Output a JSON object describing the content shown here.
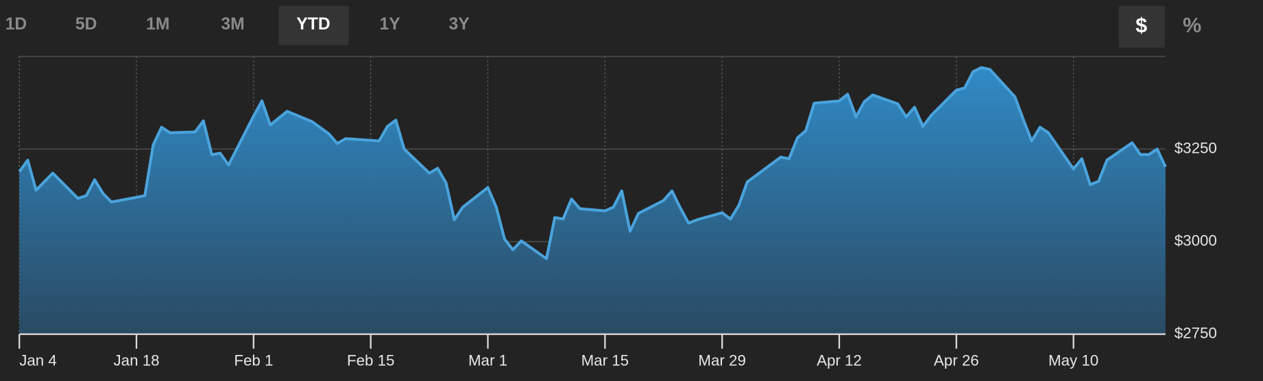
{
  "range_buttons": [
    "1D",
    "5D",
    "1M",
    "3M",
    "YTD",
    "1Y",
    "3Y"
  ],
  "selected_range": "YTD",
  "unit_buttons": [
    "$",
    "%"
  ],
  "selected_unit": "$",
  "chart_data": {
    "type": "area",
    "x": [
      "Jan 4",
      "Jan 5",
      "Jan 6",
      "Jan 8",
      "Jan 11",
      "Jan 12",
      "Jan 13",
      "Jan 14",
      "Jan 15",
      "Jan 19",
      "Jan 20",
      "Jan 21",
      "Jan 22",
      "Jan 25",
      "Jan 26",
      "Jan 27",
      "Jan 28",
      "Jan 29",
      "Feb 1",
      "Feb 2",
      "Feb 3",
      "Feb 5",
      "Feb 8",
      "Feb 10",
      "Feb 11",
      "Feb 12",
      "Feb 16",
      "Feb 17",
      "Feb 18",
      "Feb 19",
      "Feb 22",
      "Feb 23",
      "Feb 24",
      "Feb 25",
      "Feb 26",
      "Mar 1",
      "Mar 2",
      "Mar 3",
      "Mar 4",
      "Mar 5",
      "Mar 8",
      "Mar 9",
      "Mar 10",
      "Mar 11",
      "Mar 12",
      "Mar 15",
      "Mar 16",
      "Mar 17",
      "Mar 18",
      "Mar 19",
      "Mar 22",
      "Mar 23",
      "Mar 24",
      "Mar 25",
      "Mar 26",
      "Mar 29",
      "Mar 30",
      "Mar 31",
      "Apr 1",
      "Apr 5",
      "Apr 6",
      "Apr 7",
      "Apr 8",
      "Apr 9",
      "Apr 12",
      "Apr 13",
      "Apr 14",
      "Apr 15",
      "Apr 16",
      "Apr 19",
      "Apr 20",
      "Apr 21",
      "Apr 22",
      "Apr 23",
      "Apr 26",
      "Apr 27",
      "Apr 28",
      "Apr 29",
      "Apr 30",
      "May 3",
      "May 4",
      "May 5",
      "May 6",
      "May 7",
      "May 10",
      "May 11",
      "May 12",
      "May 13",
      "May 14",
      "May 17",
      "May 18",
      "May 19",
      "May 20",
      "May 21"
    ],
    "values": [
      3189,
      3220,
      3139,
      3185,
      3117,
      3124,
      3167,
      3130,
      3107,
      3124,
      3261,
      3309,
      3294,
      3296,
      3326,
      3235,
      3239,
      3207,
      3339,
      3380,
      3315,
      3352,
      3324,
      3291,
      3265,
      3278,
      3272,
      3311,
      3328,
      3250,
      3185,
      3198,
      3159,
      3059,
      3093,
      3146,
      3093,
      3007,
      2978,
      3002,
      2954,
      3065,
      3061,
      3115,
      3089,
      3083,
      3093,
      3137,
      3028,
      3076,
      3111,
      3137,
      3091,
      3050,
      3059,
      3078,
      3061,
      3098,
      3161,
      3228,
      3224,
      3280,
      3300,
      3374,
      3380,
      3398,
      3337,
      3378,
      3396,
      3372,
      3337,
      3363,
      3311,
      3341,
      3409,
      3415,
      3459,
      3470,
      3465,
      3391,
      3330,
      3272,
      3309,
      3294,
      3196,
      3224,
      3154,
      3163,
      3220,
      3267,
      3235,
      3235,
      3250,
      3202
    ],
    "color": "#4aa3dc",
    "xlim": [
      "Jan 4",
      "May 21"
    ],
    "xticks": [
      "Jan 4",
      "Jan 18",
      "Feb 1",
      "Feb 15",
      "Mar 1",
      "Mar 15",
      "Mar 29",
      "Apr 12",
      "Apr 26",
      "May 10"
    ],
    "ylim": [
      2750,
      3500
    ],
    "yticks": [
      {
        "value": 2750,
        "label": "$2750"
      },
      {
        "value": 3000,
        "label": "$3000"
      },
      {
        "value": 3250,
        "label": "$3250"
      }
    ],
    "grid": true
  }
}
